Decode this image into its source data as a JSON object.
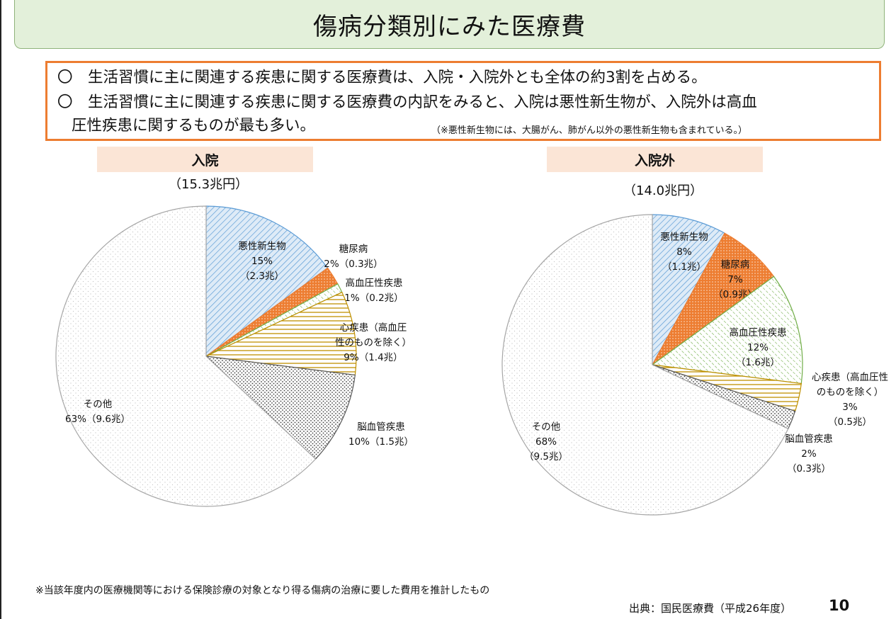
{
  "title": "傷病分類別にみた医療費",
  "summary": {
    "bullet1": "〇　生活習慣に主に関連する疾患に関する医療費は、入院・入院外とも全体の約3割を占める。",
    "bullet2_line1": "〇　生活習慣に主に関連する疾患に関する医療費の内訳をみると、入院は悪性新生物が、入院外は高血",
    "bullet2_line2": "圧性疾患に関するものが最も多い。",
    "note": "（※悪性新生物には、大腸がん、肺がん以外の悪性新生物も含まれている。）"
  },
  "chart_data": [
    {
      "type": "pie",
      "title": "入院",
      "subtitle": "（15.3兆円）",
      "slices": [
        {
          "lines": [
            "悪性新生物",
            "15%",
            "（2.3兆）"
          ],
          "value": 15,
          "amount": 2.3,
          "pattern": "diag-blue",
          "color": "#5b9bd5"
        },
        {
          "lines": [
            "糖尿病",
            "2%（0.3兆）"
          ],
          "value": 2,
          "amount": 0.3,
          "pattern": "dots-orange",
          "color": "#ed7d31"
        },
        {
          "lines": [
            "高血圧性疾患",
            "1%（0.2兆）"
          ],
          "value": 1,
          "amount": 0.2,
          "pattern": "diag-green",
          "color": "#70ad47"
        },
        {
          "lines": [
            "心疾患（高血圧",
            "性のものを除く）",
            "9%（1.4兆）"
          ],
          "value": 9,
          "amount": 1.4,
          "pattern": "horiz-gold",
          "color": "#bf9000"
        },
        {
          "lines": [
            "脳血管疾患",
            "10%（1.5兆）"
          ],
          "value": 10,
          "amount": 1.5,
          "pattern": "dots-gray",
          "color": "#595959"
        },
        {
          "lines": [
            "その他",
            "63%（9.6兆）"
          ],
          "value": 63,
          "amount": 9.6,
          "pattern": "dots-light",
          "color": "#a6a6a6"
        }
      ]
    },
    {
      "type": "pie",
      "title": "入院外",
      "subtitle": "（14.0兆円）",
      "slices": [
        {
          "lines": [
            "悪性新生物",
            "8%",
            "（1.1兆）"
          ],
          "value": 8,
          "amount": 1.1,
          "pattern": "diag-blue",
          "color": "#5b9bd5"
        },
        {
          "lines": [
            "糖尿病",
            "7%",
            "（0.9兆）"
          ],
          "value": 7,
          "amount": 0.9,
          "pattern": "dots-orange",
          "color": "#ed7d31"
        },
        {
          "lines": [
            "高血圧性疾患",
            "12%",
            "（1.6兆）"
          ],
          "value": 12,
          "amount": 1.6,
          "pattern": "diag-green",
          "color": "#70ad47"
        },
        {
          "lines": [
            "心疾患（高血圧性",
            "のものを除く）",
            "3%",
            "（0.5兆）"
          ],
          "value": 3,
          "amount": 0.5,
          "pattern": "horiz-gold",
          "color": "#bf9000"
        },
        {
          "lines": [
            "脳血管疾患",
            "2%",
            "（0.3兆）"
          ],
          "value": 2,
          "amount": 0.3,
          "pattern": "dots-gray",
          "color": "#595959"
        },
        {
          "lines": [
            "その他",
            "68%",
            "（9.5兆）"
          ],
          "value": 68,
          "amount": 9.5,
          "pattern": "dots-light",
          "color": "#a6a6a6"
        }
      ]
    }
  ],
  "footnote": "※当該年度内の医療機関等における保険診療の対象となり得る傷病の治療に要した費用を推計したもの",
  "source": "出典：国民医療費（平成26年度）",
  "page_number": "10"
}
